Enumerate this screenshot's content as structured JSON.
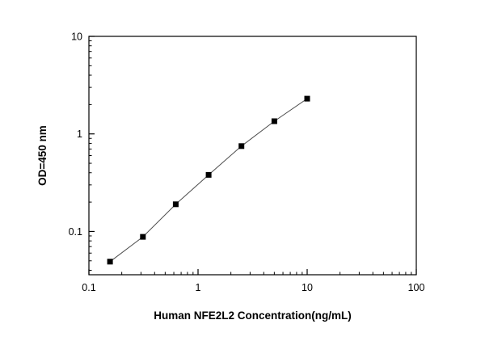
{
  "figure": {
    "background": "#ffffff"
  },
  "chart_data": {
    "type": "line",
    "title": "",
    "xlabel": "Human NFE2L2 Concentration(ng/mL)",
    "ylabel": "OD=450 nm",
    "x_scale": "log",
    "y_scale": "log",
    "xlim": [
      0.1,
      100
    ],
    "ylim": [
      0.036,
      10
    ],
    "x_ticks": [
      0.1,
      1,
      10,
      100
    ],
    "y_ticks": [
      0.1,
      1,
      10
    ],
    "x_tick_labels": [
      "0.1",
      "1",
      "10",
      "100"
    ],
    "y_tick_labels": [
      "0.1",
      "1",
      "10"
    ],
    "grid": false,
    "legend": "none",
    "frame": true,
    "series": [
      {
        "name": "standard-curve",
        "marker": "square",
        "marker_color": "#000000",
        "line_color": "#4d4d4d",
        "x": [
          0.156,
          0.3125,
          0.625,
          1.25,
          2.5,
          5,
          10
        ],
        "y": [
          0.049,
          0.088,
          0.19,
          0.38,
          0.75,
          1.35,
          2.3
        ]
      }
    ]
  }
}
